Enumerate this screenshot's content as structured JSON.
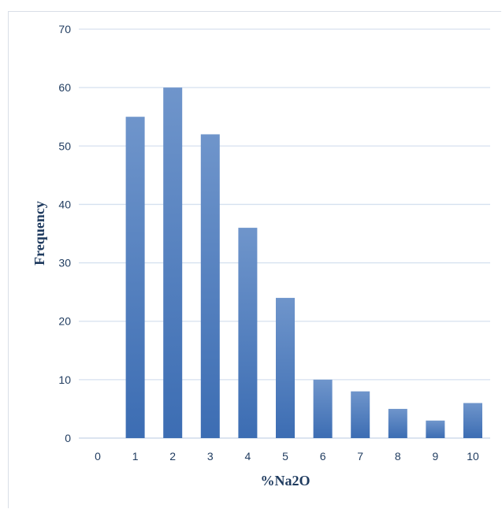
{
  "chart_data": {
    "type": "bar",
    "categories": [
      "0",
      "1",
      "2",
      "3",
      "4",
      "5",
      "6",
      "7",
      "8",
      "9",
      "10"
    ],
    "values": [
      0,
      55,
      60,
      52,
      36,
      24,
      10,
      8,
      5,
      3,
      6
    ],
    "xlabel": "%Na2O",
    "ylabel": "Frequency",
    "ylim": [
      0,
      70
    ],
    "yticks": [
      0,
      10,
      20,
      30,
      40,
      50,
      60,
      70
    ],
    "grid": true,
    "legend": "none",
    "colors": {
      "bar_top": "#6f95cb",
      "bar_bottom": "#3c6db3",
      "grid": "#d6e1ef",
      "text": "#1f3b5f"
    }
  }
}
